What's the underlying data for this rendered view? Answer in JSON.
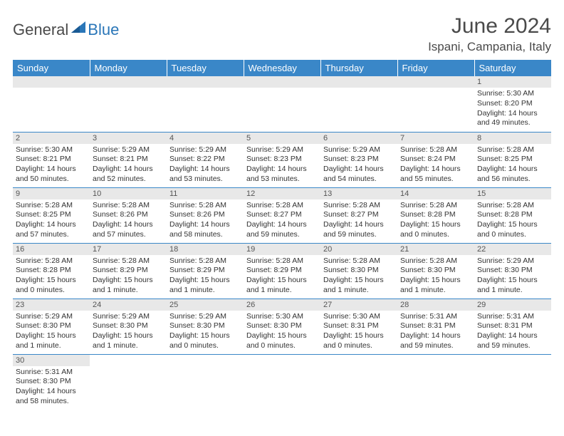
{
  "brand": {
    "part1": "General",
    "part2": "Blue"
  },
  "title": "June 2024",
  "location": "Ispani, Campania, Italy",
  "colors": {
    "header_bg": "#3a87c8",
    "header_fg": "#ffffff",
    "daynum_bg": "#e8e8e8",
    "text": "#333333",
    "brand_gray": "#4a4a4a",
    "brand_blue": "#2a76b8"
  },
  "font": {
    "family": "Arial",
    "header_size": 13,
    "cell_size": 10.5,
    "title_size": 30,
    "location_size": 17
  },
  "columns": [
    "Sunday",
    "Monday",
    "Tuesday",
    "Wednesday",
    "Thursday",
    "Friday",
    "Saturday"
  ],
  "weeks": [
    [
      {
        "day": "",
        "sunrise": "",
        "sunset": "",
        "daylight": ""
      },
      {
        "day": "",
        "sunrise": "",
        "sunset": "",
        "daylight": ""
      },
      {
        "day": "",
        "sunrise": "",
        "sunset": "",
        "daylight": ""
      },
      {
        "day": "",
        "sunrise": "",
        "sunset": "",
        "daylight": ""
      },
      {
        "day": "",
        "sunrise": "",
        "sunset": "",
        "daylight": ""
      },
      {
        "day": "",
        "sunrise": "",
        "sunset": "",
        "daylight": ""
      },
      {
        "day": "1",
        "sunrise": "Sunrise: 5:30 AM",
        "sunset": "Sunset: 8:20 PM",
        "daylight": "Daylight: 14 hours and 49 minutes."
      }
    ],
    [
      {
        "day": "2",
        "sunrise": "Sunrise: 5:30 AM",
        "sunset": "Sunset: 8:21 PM",
        "daylight": "Daylight: 14 hours and 50 minutes."
      },
      {
        "day": "3",
        "sunrise": "Sunrise: 5:29 AM",
        "sunset": "Sunset: 8:21 PM",
        "daylight": "Daylight: 14 hours and 52 minutes."
      },
      {
        "day": "4",
        "sunrise": "Sunrise: 5:29 AM",
        "sunset": "Sunset: 8:22 PM",
        "daylight": "Daylight: 14 hours and 53 minutes."
      },
      {
        "day": "5",
        "sunrise": "Sunrise: 5:29 AM",
        "sunset": "Sunset: 8:23 PM",
        "daylight": "Daylight: 14 hours and 53 minutes."
      },
      {
        "day": "6",
        "sunrise": "Sunrise: 5:29 AM",
        "sunset": "Sunset: 8:23 PM",
        "daylight": "Daylight: 14 hours and 54 minutes."
      },
      {
        "day": "7",
        "sunrise": "Sunrise: 5:28 AM",
        "sunset": "Sunset: 8:24 PM",
        "daylight": "Daylight: 14 hours and 55 minutes."
      },
      {
        "day": "8",
        "sunrise": "Sunrise: 5:28 AM",
        "sunset": "Sunset: 8:25 PM",
        "daylight": "Daylight: 14 hours and 56 minutes."
      }
    ],
    [
      {
        "day": "9",
        "sunrise": "Sunrise: 5:28 AM",
        "sunset": "Sunset: 8:25 PM",
        "daylight": "Daylight: 14 hours and 57 minutes."
      },
      {
        "day": "10",
        "sunrise": "Sunrise: 5:28 AM",
        "sunset": "Sunset: 8:26 PM",
        "daylight": "Daylight: 14 hours and 57 minutes."
      },
      {
        "day": "11",
        "sunrise": "Sunrise: 5:28 AM",
        "sunset": "Sunset: 8:26 PM",
        "daylight": "Daylight: 14 hours and 58 minutes."
      },
      {
        "day": "12",
        "sunrise": "Sunrise: 5:28 AM",
        "sunset": "Sunset: 8:27 PM",
        "daylight": "Daylight: 14 hours and 59 minutes."
      },
      {
        "day": "13",
        "sunrise": "Sunrise: 5:28 AM",
        "sunset": "Sunset: 8:27 PM",
        "daylight": "Daylight: 14 hours and 59 minutes."
      },
      {
        "day": "14",
        "sunrise": "Sunrise: 5:28 AM",
        "sunset": "Sunset: 8:28 PM",
        "daylight": "Daylight: 15 hours and 0 minutes."
      },
      {
        "day": "15",
        "sunrise": "Sunrise: 5:28 AM",
        "sunset": "Sunset: 8:28 PM",
        "daylight": "Daylight: 15 hours and 0 minutes."
      }
    ],
    [
      {
        "day": "16",
        "sunrise": "Sunrise: 5:28 AM",
        "sunset": "Sunset: 8:28 PM",
        "daylight": "Daylight: 15 hours and 0 minutes."
      },
      {
        "day": "17",
        "sunrise": "Sunrise: 5:28 AM",
        "sunset": "Sunset: 8:29 PM",
        "daylight": "Daylight: 15 hours and 1 minute."
      },
      {
        "day": "18",
        "sunrise": "Sunrise: 5:28 AM",
        "sunset": "Sunset: 8:29 PM",
        "daylight": "Daylight: 15 hours and 1 minute."
      },
      {
        "day": "19",
        "sunrise": "Sunrise: 5:28 AM",
        "sunset": "Sunset: 8:29 PM",
        "daylight": "Daylight: 15 hours and 1 minute."
      },
      {
        "day": "20",
        "sunrise": "Sunrise: 5:28 AM",
        "sunset": "Sunset: 8:30 PM",
        "daylight": "Daylight: 15 hours and 1 minute."
      },
      {
        "day": "21",
        "sunrise": "Sunrise: 5:28 AM",
        "sunset": "Sunset: 8:30 PM",
        "daylight": "Daylight: 15 hours and 1 minute."
      },
      {
        "day": "22",
        "sunrise": "Sunrise: 5:29 AM",
        "sunset": "Sunset: 8:30 PM",
        "daylight": "Daylight: 15 hours and 1 minute."
      }
    ],
    [
      {
        "day": "23",
        "sunrise": "Sunrise: 5:29 AM",
        "sunset": "Sunset: 8:30 PM",
        "daylight": "Daylight: 15 hours and 1 minute."
      },
      {
        "day": "24",
        "sunrise": "Sunrise: 5:29 AM",
        "sunset": "Sunset: 8:30 PM",
        "daylight": "Daylight: 15 hours and 1 minute."
      },
      {
        "day": "25",
        "sunrise": "Sunrise: 5:29 AM",
        "sunset": "Sunset: 8:30 PM",
        "daylight": "Daylight: 15 hours and 0 minutes."
      },
      {
        "day": "26",
        "sunrise": "Sunrise: 5:30 AM",
        "sunset": "Sunset: 8:30 PM",
        "daylight": "Daylight: 15 hours and 0 minutes."
      },
      {
        "day": "27",
        "sunrise": "Sunrise: 5:30 AM",
        "sunset": "Sunset: 8:31 PM",
        "daylight": "Daylight: 15 hours and 0 minutes."
      },
      {
        "day": "28",
        "sunrise": "Sunrise: 5:31 AM",
        "sunset": "Sunset: 8:31 PM",
        "daylight": "Daylight: 14 hours and 59 minutes."
      },
      {
        "day": "29",
        "sunrise": "Sunrise: 5:31 AM",
        "sunset": "Sunset: 8:31 PM",
        "daylight": "Daylight: 14 hours and 59 minutes."
      }
    ],
    [
      {
        "day": "30",
        "sunrise": "Sunrise: 5:31 AM",
        "sunset": "Sunset: 8:30 PM",
        "daylight": "Daylight: 14 hours and 58 minutes."
      },
      {
        "day": "",
        "sunrise": "",
        "sunset": "",
        "daylight": ""
      },
      {
        "day": "",
        "sunrise": "",
        "sunset": "",
        "daylight": ""
      },
      {
        "day": "",
        "sunrise": "",
        "sunset": "",
        "daylight": ""
      },
      {
        "day": "",
        "sunrise": "",
        "sunset": "",
        "daylight": ""
      },
      {
        "day": "",
        "sunrise": "",
        "sunset": "",
        "daylight": ""
      },
      {
        "day": "",
        "sunrise": "",
        "sunset": "",
        "daylight": ""
      }
    ]
  ]
}
